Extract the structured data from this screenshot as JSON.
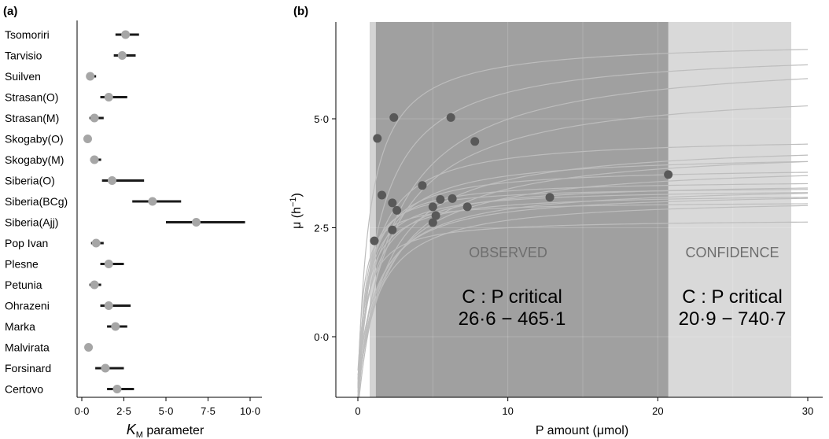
{
  "chart_data": [
    {
      "panel_label": "(a)",
      "type": "scatter",
      "xlabel_main": "K",
      "xlabel_sub": "M",
      "xlabel_rest": " parameter",
      "xlim": [
        0,
        10
      ],
      "xticks": [
        0,
        2.5,
        5,
        7.5,
        10
      ],
      "xtick_labels": [
        "0·0",
        "2·5",
        "5·0",
        "7·5",
        "10·0"
      ],
      "categories": [
        "Tsomoriri",
        "Tarvisio",
        "Suilven",
        "Strasan(O)",
        "Strasan(M)",
        "Skogaby(O)",
        "Skogaby(M)",
        "Siberia(O)",
        "Siberia(BCg)",
        "Siberia(Ajj)",
        "Pop Ivan",
        "Plesne",
        "Petunia",
        "Ohrazeni",
        "Marka",
        "Malvirata",
        "Forsinard",
        "Certovo"
      ],
      "values": [
        2.6,
        2.4,
        0.5,
        1.6,
        0.75,
        0.35,
        0.75,
        1.8,
        4.2,
        6.8,
        0.85,
        1.6,
        0.75,
        1.6,
        2.0,
        0.4,
        1.4,
        2.1
      ],
      "ci_low": [
        2.0,
        1.9,
        0.3,
        1.1,
        0.45,
        0.2,
        0.5,
        1.2,
        3.0,
        5.0,
        0.55,
        1.1,
        0.45,
        1.1,
        1.5,
        0.25,
        0.8,
        1.5
      ],
      "ci_high": [
        3.4,
        3.2,
        0.85,
        2.7,
        1.3,
        0.55,
        1.15,
        3.7,
        5.9,
        9.7,
        1.3,
        2.5,
        1.15,
        2.9,
        2.7,
        0.6,
        2.5,
        3.1
      ],
      "point_color": "#a6a6a6",
      "bar_color": "#1a1a1a"
    },
    {
      "panel_label": "(b)",
      "type": "scatter",
      "xlabel": "P amount (μmol)",
      "ylabel_main": "μ (h",
      "ylabel_sup": "−1",
      "ylabel_end": ")",
      "xlim": [
        0,
        30
      ],
      "ylim": [
        -1,
        7
      ],
      "xticks": [
        0,
        10,
        20,
        30
      ],
      "xtick_labels": [
        "0",
        "10",
        "20",
        "30"
      ],
      "yticks": [
        0,
        2.5,
        5
      ],
      "ytick_labels": [
        "0·0",
        "2·5",
        "5·0"
      ],
      "points": [
        {
          "x": 1.1,
          "y": 2.2
        },
        {
          "x": 1.3,
          "y": 4.55
        },
        {
          "x": 1.6,
          "y": 3.25
        },
        {
          "x": 2.3,
          "y": 3.07
        },
        {
          "x": 2.3,
          "y": 2.45
        },
        {
          "x": 2.4,
          "y": 5.03
        },
        {
          "x": 2.6,
          "y": 2.9
        },
        {
          "x": 4.3,
          "y": 3.47
        },
        {
          "x": 5.0,
          "y": 2.98
        },
        {
          "x": 5.0,
          "y": 2.62
        },
        {
          "x": 5.2,
          "y": 2.78
        },
        {
          "x": 5.5,
          "y": 3.15
        },
        {
          "x": 6.2,
          "y": 5.03
        },
        {
          "x": 6.3,
          "y": 3.17
        },
        {
          "x": 7.3,
          "y": 2.98
        },
        {
          "x": 7.8,
          "y": 4.48
        },
        {
          "x": 12.8,
          "y": 3.2
        },
        {
          "x": 20.7,
          "y": 3.72
        }
      ],
      "curves": [
        {
          "mu_max": 6.8,
          "km": 0.8,
          "c": 1.2
        },
        {
          "mu_max": 6.6,
          "km": 1.4,
          "c": 1.5
        },
        {
          "mu_max": 6.5,
          "km": 2.4,
          "c": 1.3
        },
        {
          "mu_max": 5.8,
          "km": 2.4,
          "c": 1.0
        },
        {
          "mu_max": 4.6,
          "km": 0.9,
          "c": 1.6
        },
        {
          "mu_max": 4.5,
          "km": 1.7,
          "c": 1.7
        },
        {
          "mu_max": 4.4,
          "km": 2.2,
          "c": 1.2
        },
        {
          "mu_max": 4.2,
          "km": 1.0,
          "c": 1.4
        },
        {
          "mu_max": 4.0,
          "km": 1.9,
          "c": 1.1
        },
        {
          "mu_max": 3.9,
          "km": 0.8,
          "c": 1.0
        },
        {
          "mu_max": 3.6,
          "km": 0.5,
          "c": 1.8
        },
        {
          "mu_max": 3.55,
          "km": 0.9,
          "c": 1.2
        },
        {
          "mu_max": 3.5,
          "km": 1.5,
          "c": 0.9
        },
        {
          "mu_max": 3.45,
          "km": 0.4,
          "c": 1.9
        },
        {
          "mu_max": 3.4,
          "km": 0.6,
          "c": 1.3
        },
        {
          "mu_max": 3.35,
          "km": 1.1,
          "c": 1.6
        },
        {
          "mu_max": 3.3,
          "km": 0.75,
          "c": 0.8
        },
        {
          "mu_max": 3.2,
          "km": 1.3,
          "c": 1.4
        },
        {
          "mu_max": 3.1,
          "km": 0.35,
          "c": 1.2
        },
        {
          "mu_max": 2.7,
          "km": 0.5,
          "c": 1.5
        }
      ],
      "observed_range": [
        0.8,
        20.7
      ],
      "confidence_range": [
        20.7,
        28.9
      ],
      "inner_strip": [
        0.8,
        1.2
      ],
      "observed_label": "OBSERVED",
      "confidence_label": "CONFIDENCE",
      "observed_cp_line1": "C : P critical",
      "observed_cp_line2": "26·6 − 465·1",
      "confidence_cp_line1": "C : P critical",
      "confidence_cp_line2": "20·9 − 740·7",
      "point_color": "#595959",
      "curve_color": "#bdbdbd",
      "observed_color": "#a0a0a0",
      "confidence_color": "#d9d9d9",
      "strip_color": "#d4d4d4"
    }
  ]
}
